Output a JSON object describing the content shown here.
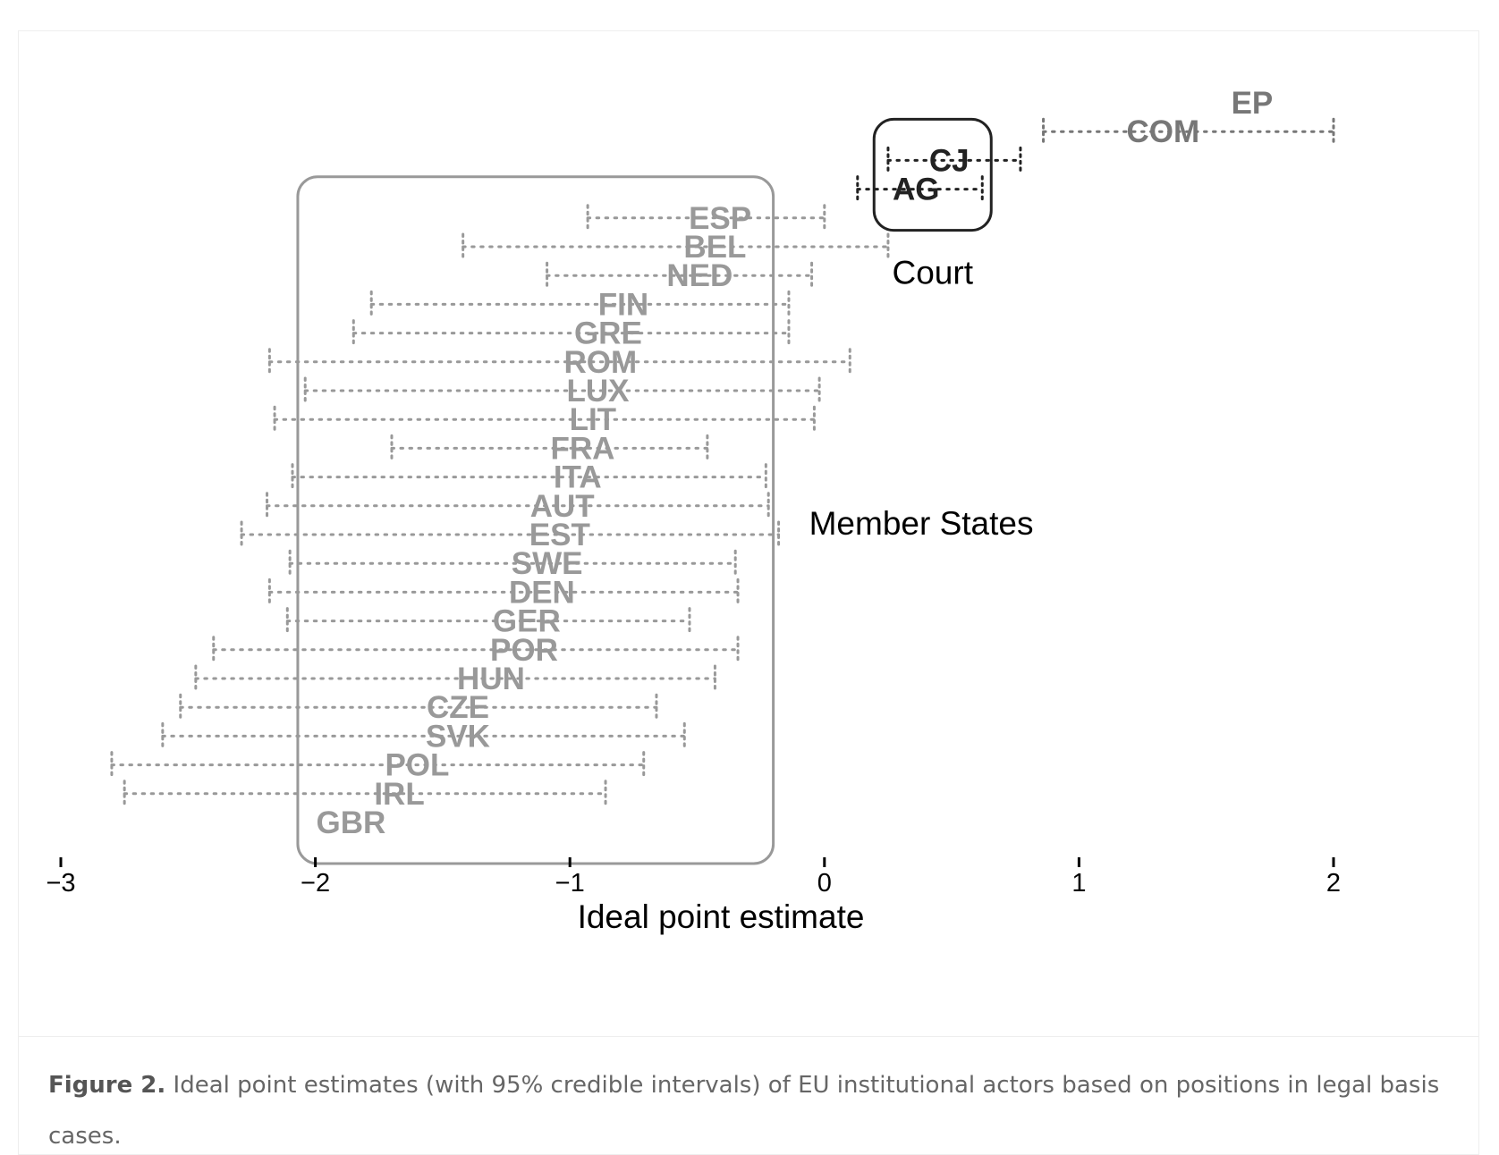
{
  "chart_data": {
    "type": "interval",
    "title": "",
    "xlabel": "Ideal point estimate",
    "ylabel": "",
    "xlim": [
      -3,
      2
    ],
    "xticks": [
      -3,
      -2,
      -1,
      0,
      1,
      2
    ],
    "xtick_labels": [
      "−3",
      "−2",
      "−1",
      "0",
      "1",
      "2"
    ],
    "grid": false,
    "groups": [
      {
        "label": "Member States",
        "color": "#999999",
        "members": [
          "ESP",
          "BEL",
          "NED",
          "FIN",
          "GRE",
          "ROM",
          "LUX",
          "LIT",
          "FRA",
          "ITA",
          "AUT",
          "EST",
          "SWE",
          "DEN",
          "GER",
          "POR",
          "HUN",
          "CZE",
          "SVK",
          "POL",
          "IRL",
          "GBR"
        ]
      },
      {
        "label": "Court",
        "color": "#222222",
        "members": [
          "CJ",
          "AG"
        ]
      }
    ],
    "actors": [
      {
        "name": "EP",
        "estimate": 1.68,
        "lower": null,
        "upper": null,
        "color": "#777777"
      },
      {
        "name": "COM",
        "estimate": 1.33,
        "lower": 0.86,
        "upper": 2.0,
        "color": "#777777"
      },
      {
        "name": "CJ",
        "estimate": 0.49,
        "lower": 0.25,
        "upper": 0.77,
        "color": "#222222"
      },
      {
        "name": "AG",
        "estimate": 0.36,
        "lower": 0.13,
        "upper": 0.62,
        "color": "#222222"
      },
      {
        "name": "ESP",
        "estimate": -0.41,
        "lower": -0.93,
        "upper": 0.0,
        "color": "#999999"
      },
      {
        "name": "BEL",
        "estimate": -0.43,
        "lower": -1.42,
        "upper": 0.25,
        "color": "#999999"
      },
      {
        "name": "NED",
        "estimate": -0.49,
        "lower": -1.09,
        "upper": -0.05,
        "color": "#999999"
      },
      {
        "name": "FIN",
        "estimate": -0.79,
        "lower": -1.78,
        "upper": -0.14,
        "color": "#999999"
      },
      {
        "name": "GRE",
        "estimate": -0.85,
        "lower": -1.85,
        "upper": -0.14,
        "color": "#999999"
      },
      {
        "name": "ROM",
        "estimate": -0.88,
        "lower": -2.18,
        "upper": 0.1,
        "color": "#999999"
      },
      {
        "name": "LUX",
        "estimate": -0.89,
        "lower": -2.04,
        "upper": -0.02,
        "color": "#999999"
      },
      {
        "name": "LIT",
        "estimate": -0.91,
        "lower": -2.16,
        "upper": -0.04,
        "color": "#999999"
      },
      {
        "name": "FRA",
        "estimate": -0.95,
        "lower": -1.7,
        "upper": -0.46,
        "color": "#999999"
      },
      {
        "name": "ITA",
        "estimate": -0.97,
        "lower": -2.09,
        "upper": -0.23,
        "color": "#999999"
      },
      {
        "name": "AUT",
        "estimate": -1.03,
        "lower": -2.19,
        "upper": -0.22,
        "color": "#999999"
      },
      {
        "name": "EST",
        "estimate": -1.04,
        "lower": -2.29,
        "upper": -0.18,
        "color": "#999999"
      },
      {
        "name": "SWE",
        "estimate": -1.09,
        "lower": -2.1,
        "upper": -0.35,
        "color": "#999999"
      },
      {
        "name": "DEN",
        "estimate": -1.11,
        "lower": -2.18,
        "upper": -0.34,
        "color": "#999999"
      },
      {
        "name": "GER",
        "estimate": -1.17,
        "lower": -2.11,
        "upper": -0.53,
        "color": "#999999"
      },
      {
        "name": "POR",
        "estimate": -1.18,
        "lower": -2.4,
        "upper": -0.34,
        "color": "#999999"
      },
      {
        "name": "HUN",
        "estimate": -1.31,
        "lower": -2.47,
        "upper": -0.43,
        "color": "#999999"
      },
      {
        "name": "CZE",
        "estimate": -1.44,
        "lower": -2.53,
        "upper": -0.66,
        "color": "#999999"
      },
      {
        "name": "SVK",
        "estimate": -1.44,
        "lower": -2.6,
        "upper": -0.55,
        "color": "#999999"
      },
      {
        "name": "POL",
        "estimate": -1.6,
        "lower": -2.8,
        "upper": -0.71,
        "color": "#999999"
      },
      {
        "name": "IRL",
        "estimate": -1.67,
        "lower": -2.75,
        "upper": -0.86,
        "color": "#999999"
      },
      {
        "name": "GBR",
        "estimate": -1.86,
        "lower": null,
        "upper": null,
        "color": "#999999"
      }
    ]
  },
  "caption": {
    "label": "Figure 2.",
    "text": " Ideal point estimates (with 95% credible intervals) of EU institutional actors based on positions in legal basis cases."
  }
}
